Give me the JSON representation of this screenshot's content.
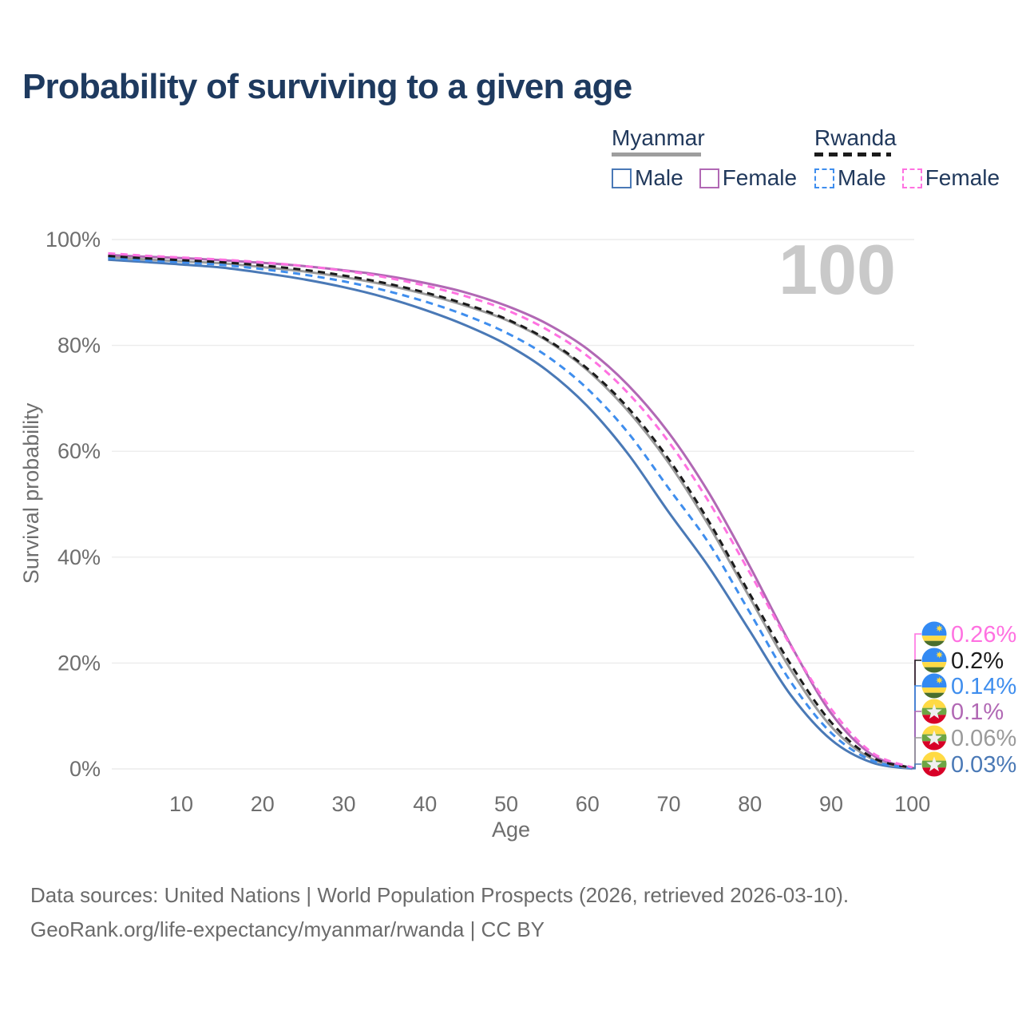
{
  "title": "Probability of surviving to a given age",
  "watermark_age": "100",
  "legend": {
    "groups": [
      {
        "label": "Myanmar",
        "line_style": "solid",
        "underline_color": "#9e9e9e",
        "items": [
          {
            "label": "Male",
            "color": "#4a79b6",
            "dashed": false
          },
          {
            "label": "Female",
            "color": "#b168b4",
            "dashed": false
          }
        ]
      },
      {
        "label": "Rwanda",
        "line_style": "dashed",
        "underline_color": "#1b1b1b",
        "items": [
          {
            "label": "Male",
            "color": "#3f8eee",
            "dashed": true
          },
          {
            "label": "Female",
            "color": "#ff71e1",
            "dashed": true
          }
        ]
      }
    ]
  },
  "footer": {
    "line1": "Data sources: United Nations | World Population Prospects (2026, retrieved 2026-03-10).",
    "line2": "GeoRank.org/life-expectancy/myanmar/rwanda | CC BY"
  },
  "chart_data": {
    "type": "line",
    "title": "Probability of surviving to a given age",
    "xlabel": "Age",
    "ylabel": "Survival probability",
    "xlim": [
      1,
      100
    ],
    "ylim": [
      0,
      100
    ],
    "grid": "horizontal",
    "legend_position": "top-right",
    "x_ticks": [
      {
        "value": 10,
        "label": "10"
      },
      {
        "value": 20,
        "label": "20"
      },
      {
        "value": 30,
        "label": "30"
      },
      {
        "value": 40,
        "label": "40"
      },
      {
        "value": 50,
        "label": "50"
      },
      {
        "value": 60,
        "label": "60"
      },
      {
        "value": 70,
        "label": "70"
      },
      {
        "value": 80,
        "label": "80"
      },
      {
        "value": 90,
        "label": "90"
      },
      {
        "value": 100,
        "label": "100"
      }
    ],
    "y_ticks": [
      {
        "value": 0,
        "label": "0%"
      },
      {
        "value": 20,
        "label": "20%"
      },
      {
        "value": 40,
        "label": "40%"
      },
      {
        "value": 60,
        "label": "60%"
      },
      {
        "value": 80,
        "label": "80%"
      },
      {
        "value": 100,
        "label": "100%"
      }
    ],
    "x": [
      1,
      5,
      10,
      15,
      20,
      25,
      30,
      35,
      40,
      45,
      50,
      55,
      60,
      65,
      70,
      75,
      80,
      85,
      90,
      95,
      100
    ],
    "series": [
      {
        "id": "myanmar-male",
        "name": "Myanmar Male",
        "country": "Myanmar",
        "sex": "Male",
        "line": "solid",
        "color": "#4a79b6",
        "flag": "myanmar",
        "end_label": "0.03%",
        "values": [
          96.2,
          95.8,
          95.3,
          94.7,
          93.7,
          92.5,
          91.0,
          89.1,
          86.7,
          83.8,
          80.2,
          75.3,
          68.5,
          59.5,
          48.5,
          38.0,
          26.0,
          14.0,
          5.5,
          1.2,
          0.03
        ]
      },
      {
        "id": "myanmar-all",
        "name": "Myanmar",
        "country": "Myanmar",
        "sex": "All",
        "line": "solid",
        "color": "#9a9a9a",
        "flag": "myanmar",
        "end_label": "0.06%",
        "values": [
          96.7,
          96.3,
          95.9,
          95.5,
          94.8,
          94.0,
          92.9,
          91.5,
          89.7,
          87.5,
          84.8,
          80.9,
          75.3,
          67.6,
          57.8,
          45.8,
          32.3,
          18.8,
          8.0,
          1.9,
          0.06
        ]
      },
      {
        "id": "myanmar-female",
        "name": "Myanmar Female",
        "country": "Myanmar",
        "sex": "Female",
        "line": "solid",
        "color": "#b168b4",
        "flag": "myanmar",
        "end_label": "0.1%",
        "values": [
          97.1,
          96.8,
          96.5,
          96.1,
          95.6,
          95.0,
          94.2,
          93.2,
          91.8,
          90.0,
          87.5,
          84.1,
          79.3,
          72.5,
          63.5,
          52.0,
          38.2,
          23.5,
          10.5,
          2.7,
          0.1
        ]
      },
      {
        "id": "rwanda-male",
        "name": "Rwanda Male",
        "country": "Rwanda",
        "sex": "Male",
        "line": "dashed",
        "color": "#3f8eee",
        "flag": "rwanda",
        "end_label": "0.14%",
        "values": [
          96.5,
          96.1,
          95.7,
          95.2,
          94.4,
          93.4,
          92.1,
          90.4,
          88.3,
          85.7,
          82.4,
          78.0,
          71.8,
          63.5,
          53.0,
          42.5,
          29.5,
          16.5,
          6.8,
          1.6,
          0.14
        ]
      },
      {
        "id": "rwanda-all",
        "name": "Rwanda",
        "country": "Rwanda",
        "sex": "All",
        "line": "dashed",
        "color": "#1b1b1b",
        "flag": "rwanda",
        "end_label": "0.2%",
        "values": [
          96.9,
          96.5,
          96.1,
          95.7,
          95.1,
          94.3,
          93.2,
          91.8,
          90.0,
          87.8,
          85.0,
          81.1,
          75.6,
          68.2,
          58.5,
          46.6,
          33.0,
          19.8,
          8.8,
          2.2,
          0.2
        ]
      },
      {
        "id": "rwanda-female",
        "name": "Rwanda Female",
        "country": "Rwanda",
        "sex": "Female",
        "line": "dashed",
        "color": "#ff71e1",
        "flag": "rwanda",
        "end_label": "0.26%",
        "values": [
          97.4,
          97.0,
          96.6,
          96.2,
          95.7,
          95.0,
          94.1,
          92.9,
          91.3,
          89.3,
          86.7,
          83.0,
          78.0,
          71.0,
          61.8,
          50.3,
          37.0,
          23.3,
          11.3,
          3.1,
          0.26
        ]
      }
    ],
    "flag_colors": {
      "rwanda": {
        "blue": "#338AF3",
        "yellow": "#FFDA44",
        "green": "#496E2D"
      },
      "myanmar": {
        "yellow": "#FFDA44",
        "green": "#6DA544",
        "red": "#D80027",
        "star": "#F0F0F0"
      }
    }
  }
}
